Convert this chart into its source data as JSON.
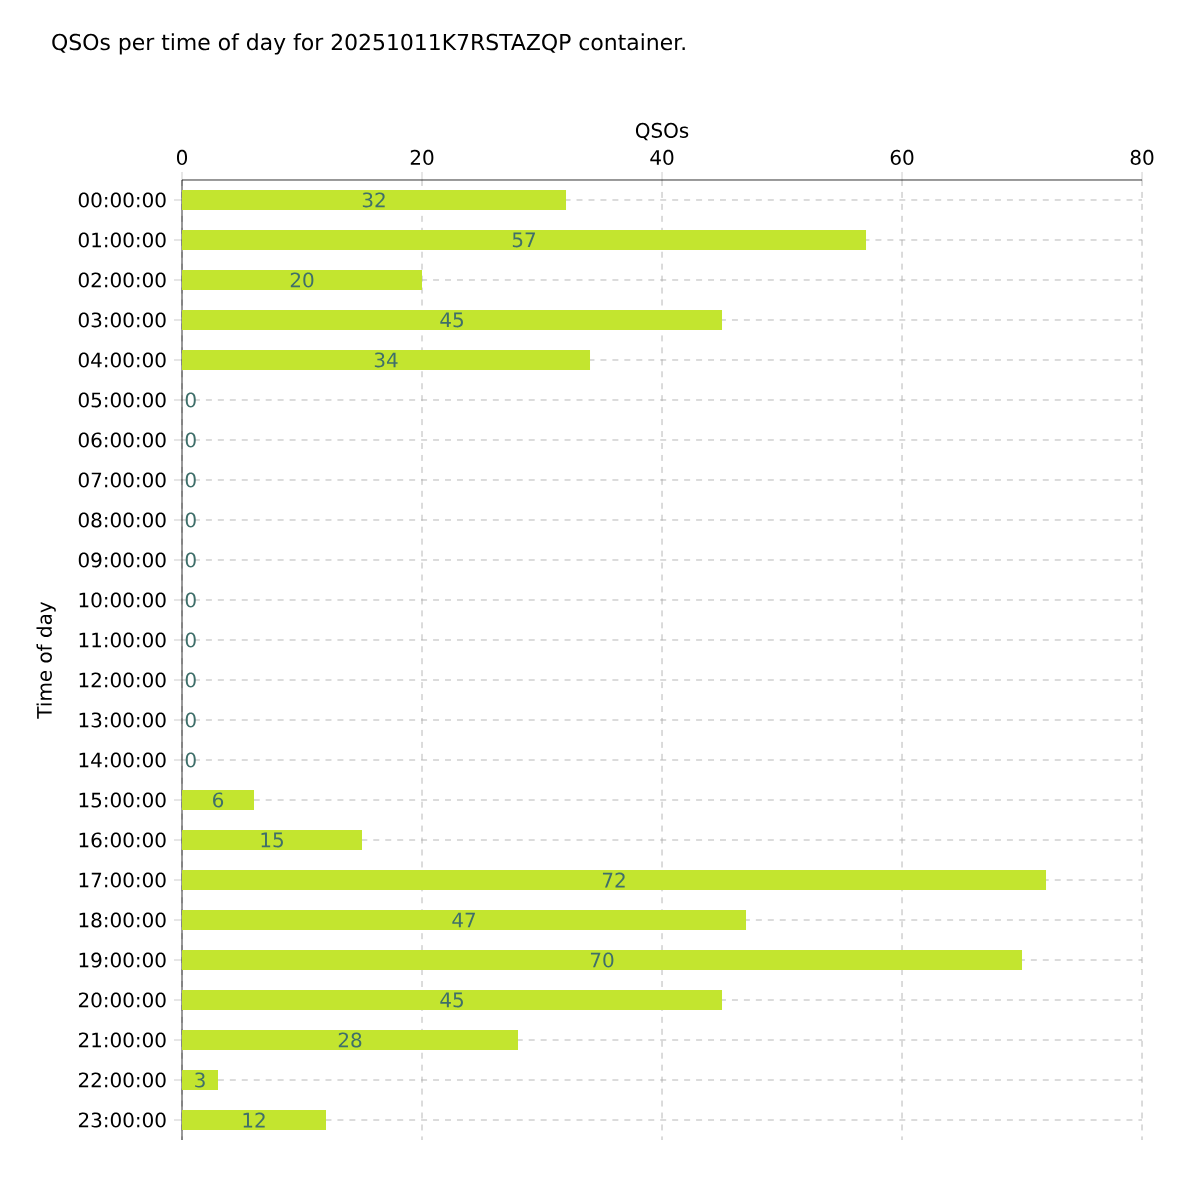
{
  "chart_data": {
    "type": "bar",
    "orientation": "horizontal",
    "title": "QSOs per time of day for 20251011K7RSTAZQP container.",
    "xlabel": "QSOs",
    "ylabel": "Time of day",
    "categories": [
      "00:00:00",
      "01:00:00",
      "02:00:00",
      "03:00:00",
      "04:00:00",
      "05:00:00",
      "06:00:00",
      "07:00:00",
      "08:00:00",
      "09:00:00",
      "10:00:00",
      "11:00:00",
      "12:00:00",
      "13:00:00",
      "14:00:00",
      "15:00:00",
      "16:00:00",
      "17:00:00",
      "18:00:00",
      "19:00:00",
      "20:00:00",
      "21:00:00",
      "22:00:00",
      "23:00:00"
    ],
    "values": [
      32,
      57,
      20,
      45,
      34,
      0,
      0,
      0,
      0,
      0,
      0,
      0,
      0,
      0,
      0,
      6,
      15,
      72,
      47,
      70,
      45,
      28,
      3,
      12
    ],
    "color": "#c3e52f",
    "xlim": [
      0,
      80
    ],
    "xticks": [
      0,
      20,
      40,
      60,
      80
    ],
    "grid": true,
    "data_labels": true
  }
}
